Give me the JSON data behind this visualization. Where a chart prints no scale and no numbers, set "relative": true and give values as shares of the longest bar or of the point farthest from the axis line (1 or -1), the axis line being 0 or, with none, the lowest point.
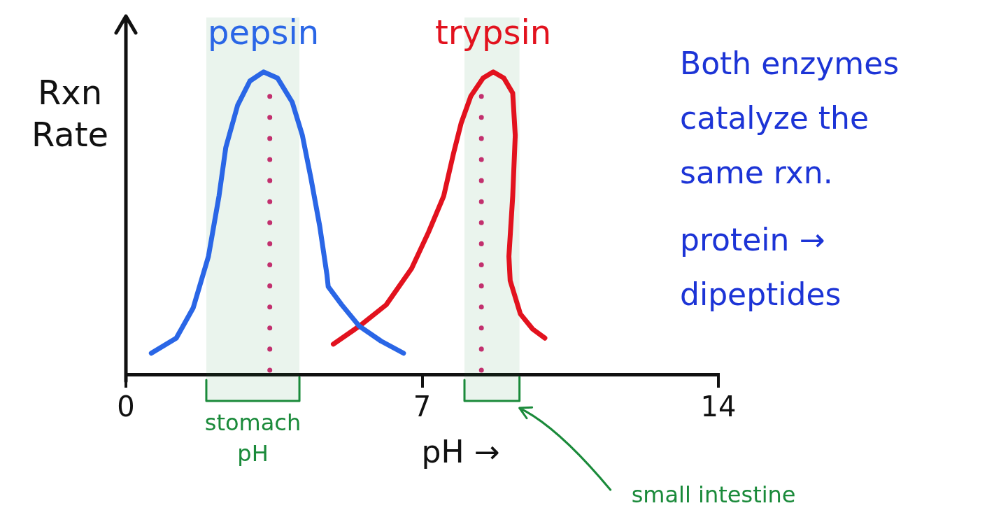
{
  "chart_data": {
    "type": "line",
    "relative": true,
    "xlabel": "pH →",
    "ylabel": "Rxn Rate",
    "xlim": [
      0,
      14
    ],
    "xticks": [
      0,
      7,
      14
    ],
    "marker": "none",
    "series": [
      {
        "name": "pepsin",
        "color": "#2a66e6",
        "x": [
          0.6,
          1.19,
          1.59,
          1.95,
          2.2,
          2.36,
          2.64,
          2.93,
          3.25,
          3.58,
          3.93,
          4.17,
          4.37,
          4.58,
          4.75,
          4.78,
          5.1,
          5.51,
          6.03,
          6.56
        ],
        "values": [
          0.07,
          0.12,
          0.22,
          0.39,
          0.59,
          0.75,
          0.89,
          0.97,
          1.0,
          0.98,
          0.9,
          0.79,
          0.65,
          0.49,
          0.33,
          0.29,
          0.23,
          0.16,
          0.11,
          0.07
        ]
      },
      {
        "name": "trypsin",
        "color": "#e2121e",
        "x": [
          4.9,
          5.52,
          6.15,
          6.75,
          7.15,
          7.51,
          7.74,
          7.92,
          8.15,
          8.44,
          8.68,
          8.93,
          9.14,
          9.2,
          9.14,
          9.05,
          9.08,
          9.32,
          9.61,
          9.9
        ],
        "values": [
          0.1,
          0.16,
          0.23,
          0.35,
          0.47,
          0.59,
          0.73,
          0.83,
          0.92,
          0.98,
          1.0,
          0.98,
          0.93,
          0.79,
          0.59,
          0.39,
          0.31,
          0.2,
          0.15,
          0.12
        ]
      }
    ],
    "ref_lines": [
      {
        "axis": "x",
        "value": 3.4,
        "color": "#c2306e",
        "line_style": "dotted"
      },
      {
        "axis": "x",
        "value": 8.4,
        "color": "#c2306e",
        "line_style": "dotted"
      }
    ],
    "bands": [
      {
        "axis": "x",
        "from": 1.9,
        "to": 4.1,
        "label": "stomach pH",
        "color": "#1a8a3a"
      },
      {
        "axis": "x",
        "from": 8.0,
        "to": 9.3,
        "label": "small intestine",
        "color": "#1a8a3a"
      }
    ],
    "annotations": [
      "Both enzymes catalyze the same rxn.",
      "protein → dipeptides"
    ]
  }
}
